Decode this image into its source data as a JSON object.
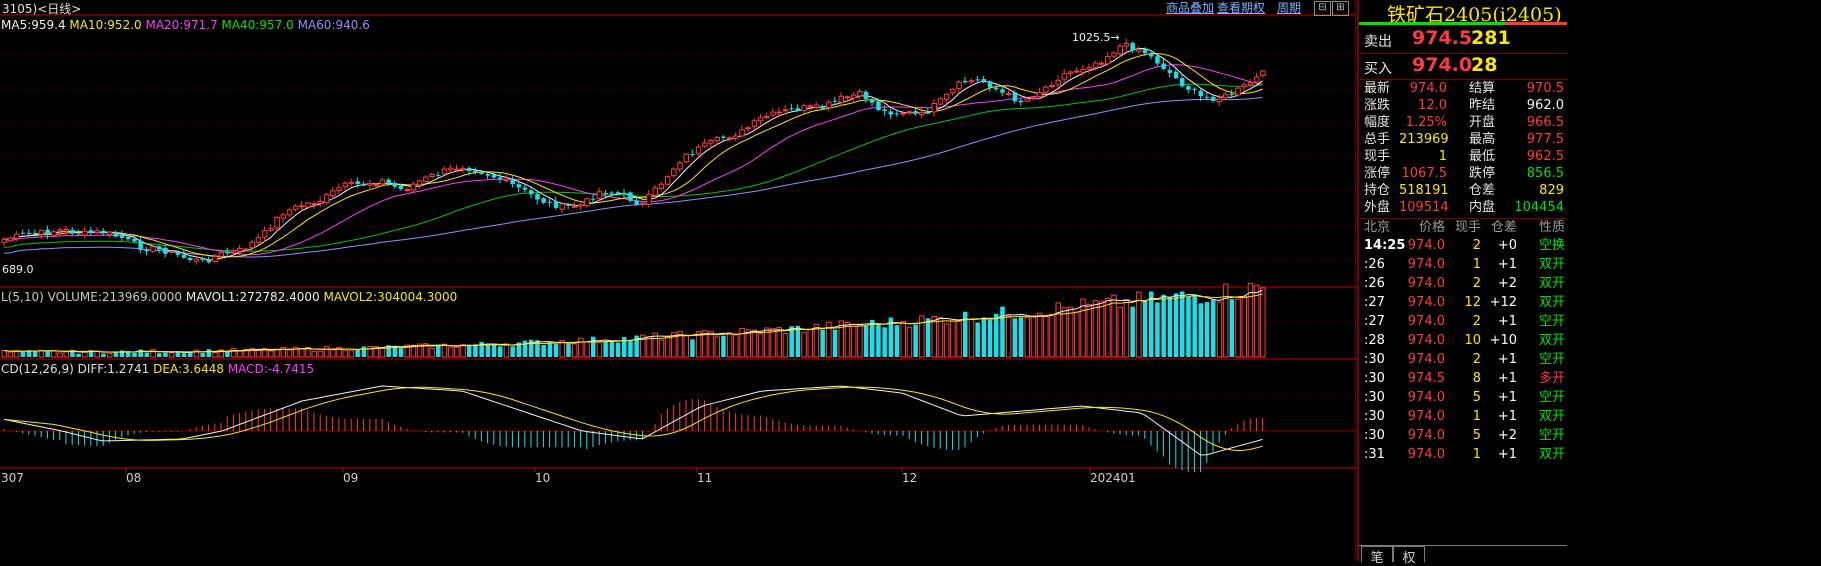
{
  "header": {
    "symbol_tag": "3105)<日线>",
    "links": [
      "商品叠加",
      "查看期权",
      "周期"
    ],
    "window_buttons": [
      "⊟",
      "⊞",
      "▭",
      "✕"
    ]
  },
  "price_chart": {
    "ma_legend": [
      {
        "text": "MA5:959.4",
        "color": "#f0f0f0"
      },
      {
        "text": "MA10:952.0",
        "color": "#ffe600"
      },
      {
        "text": "MA20:971.7",
        "color": "#ff3cff"
      },
      {
        "text": "MA40:957.0",
        "color": "#00e400"
      },
      {
        "text": "MA60:940.6",
        "color": "#8f8fff"
      }
    ],
    "high_label": "1025.5→",
    "low_label": "689.0",
    "colors": {
      "up": "#ff3b3b",
      "down": "#19e0e8",
      "ma5": "#f0f0f0",
      "ma10": "#ffe600",
      "ma20": "#ff3cff",
      "ma40": "#00c800",
      "ma60": "#8f8fff",
      "grid": "#6b0000"
    }
  },
  "volume_chart": {
    "legend": [
      {
        "text": "L(5,10) VOLUME:213969.0000",
        "color": "#c8c8c8"
      },
      {
        "text": "MAVOL1:272782.4000",
        "color": "#f0f0f0"
      },
      {
        "text": "MAVOL2:304004.3000",
        "color": "#ffe600"
      }
    ]
  },
  "macd_chart": {
    "legend": [
      {
        "text": "CD(12,26,9) DIFF:1.2741",
        "color": "#e0e0e0"
      },
      {
        "text": "DEA:3.6448",
        "color": "#ffe600"
      },
      {
        "text": "MACD:-4.7415",
        "color": "#ff3cff"
      }
    ]
  },
  "x_axis": {
    "labels": [
      "307",
      "08",
      "09",
      "10",
      "11",
      "12",
      "202401"
    ]
  },
  "quote_panel": {
    "title": "铁矿石2405(i2405)",
    "sell": {
      "label": "卖出",
      "price": "974.5",
      "volume": "281"
    },
    "buy": {
      "label": "买入",
      "price": "974.0",
      "volume": "28"
    },
    "stats": [
      {
        "l1": "最新",
        "v1": "974.0",
        "c1": "red",
        "l2": "结算",
        "v2": "970.5",
        "c2": "red"
      },
      {
        "l1": "涨跌",
        "v1": "12.0",
        "c1": "red",
        "l2": "昨结",
        "v2": "962.0",
        "c2": "white"
      },
      {
        "l1": "幅度",
        "v1": "1.25%",
        "c1": "red",
        "l2": "开盘",
        "v2": "966.5",
        "c2": "red"
      },
      {
        "l1": "总手",
        "v1": "213969",
        "c1": "yellow",
        "l2": "最高",
        "v2": "977.5",
        "c2": "red"
      },
      {
        "l1": "现手",
        "v1": "1",
        "c1": "yellow",
        "l2": "最低",
        "v2": "962.5",
        "c2": "red"
      },
      {
        "l1": "涨停",
        "v1": "1067.5",
        "c1": "red",
        "l2": "跌停",
        "v2": "856.5",
        "c2": "green"
      },
      {
        "l1": "持仓",
        "v1": "518191",
        "c1": "yellow",
        "l2": "仓差",
        "v2": "829",
        "c2": "yellow"
      },
      {
        "l1": "外盘",
        "v1": "109514",
        "c1": "red",
        "l2": "内盘",
        "v2": "104454",
        "c2": "green"
      }
    ],
    "tick_header": [
      "北京",
      "价格",
      "现手",
      "仓差",
      "性质"
    ],
    "ticks": [
      {
        "time": "14:25",
        "price": "974.0",
        "vol": "2",
        "oi": "+0",
        "nature": "空换",
        "pc": "red",
        "nc": "green"
      },
      {
        "time": ":26",
        "price": "974.0",
        "vol": "1",
        "oi": "+1",
        "nature": "双开",
        "pc": "red",
        "nc": "green"
      },
      {
        "time": ":26",
        "price": "974.0",
        "vol": "2",
        "oi": "+2",
        "nature": "双开",
        "pc": "red",
        "nc": "green"
      },
      {
        "time": ":27",
        "price": "974.0",
        "vol": "12",
        "oi": "+12",
        "nature": "双开",
        "pc": "red",
        "nc": "green"
      },
      {
        "time": ":27",
        "price": "974.0",
        "vol": "2",
        "oi": "+1",
        "nature": "空开",
        "pc": "red",
        "nc": "green"
      },
      {
        "time": ":28",
        "price": "974.0",
        "vol": "10",
        "oi": "+10",
        "nature": "双开",
        "pc": "red",
        "nc": "green"
      },
      {
        "time": ":30",
        "price": "974.0",
        "vol": "2",
        "oi": "+1",
        "nature": "空开",
        "pc": "red",
        "nc": "green"
      },
      {
        "time": ":30",
        "price": "974.5",
        "vol": "8",
        "oi": "+1",
        "nature": "多开",
        "pc": "red",
        "nc": "red"
      },
      {
        "time": ":30",
        "price": "974.0",
        "vol": "5",
        "oi": "+1",
        "nature": "空开",
        "pc": "red",
        "nc": "green"
      },
      {
        "time": ":30",
        "price": "974.0",
        "vol": "1",
        "oi": "+1",
        "nature": "双开",
        "pc": "red",
        "nc": "green"
      },
      {
        "time": ":30",
        "price": "974.0",
        "vol": "5",
        "oi": "+2",
        "nature": "空开",
        "pc": "red",
        "nc": "green"
      },
      {
        "time": ":31",
        "price": "974.0",
        "vol": "1",
        "oi": "+1",
        "nature": "双开",
        "pc": "red",
        "nc": "green"
      }
    ],
    "tabs": [
      "笔",
      "权"
    ]
  }
}
